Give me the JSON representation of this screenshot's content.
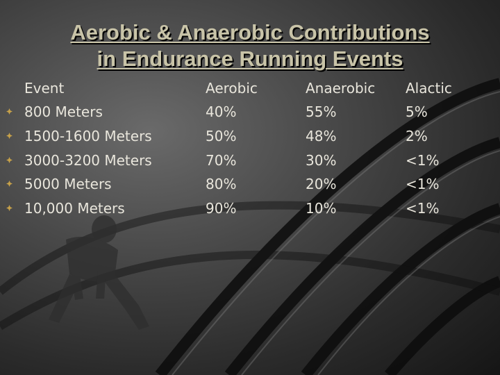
{
  "slide": {
    "title_line1": "Aerobic & Anaerobic Contributions",
    "title_line2": "in Endurance Running Events",
    "colors": {
      "title": "#c9c4a8",
      "text": "#e9e6dc",
      "bullet": "#c8a24a"
    },
    "header": {
      "event": "Event",
      "aerobic": "Aerobic",
      "anaerobic": "Anaerobic",
      "alactic": "Alactic"
    },
    "rows": [
      {
        "event": "800 Meters",
        "aerobic": "40%",
        "anaerobic": "55%",
        "alactic": "5%"
      },
      {
        "event": "1500-1600 Meters",
        "aerobic": "50%",
        "anaerobic": "48%",
        "alactic": "2%"
      },
      {
        "event": "3000-3200 Meters",
        "aerobic": "70%",
        "anaerobic": "30%",
        "alactic": "<1%"
      },
      {
        "event": "5000 Meters",
        "aerobic": "80%",
        "anaerobic": "20%",
        "alactic": "<1%"
      },
      {
        "event": "10,000 Meters",
        "aerobic": "90%",
        "anaerobic": "10%",
        "alactic": "<1%"
      }
    ],
    "background_art": [
      "track-lanes",
      "sprinter-silhouette"
    ]
  }
}
